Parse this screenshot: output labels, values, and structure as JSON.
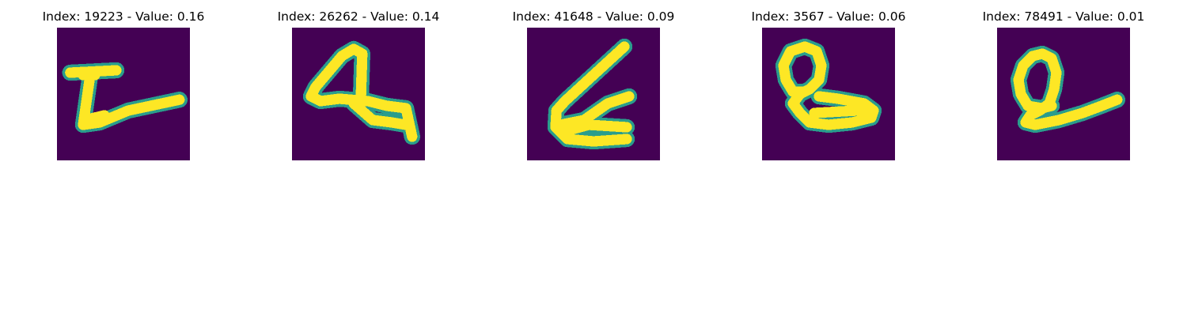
{
  "colors": {
    "background": "#440154",
    "stroke_edge": "#2a9d8c",
    "stroke_core": "#fde725"
  },
  "panels": [
    {
      "title": "Index: 19223 - Value: 0.16",
      "icon": "handwritten-glyph-icon"
    },
    {
      "title": "Index: 26262 - Value: 0.14",
      "icon": "handwritten-glyph-icon"
    },
    {
      "title": "Index: 41648 - Value: 0.09",
      "icon": "handwritten-glyph-icon"
    },
    {
      "title": "Index: 3567 - Value: 0.06",
      "icon": "handwritten-glyph-icon"
    },
    {
      "title": "Index: 78491 - Value: 0.01",
      "icon": "handwritten-glyph-icon"
    }
  ]
}
